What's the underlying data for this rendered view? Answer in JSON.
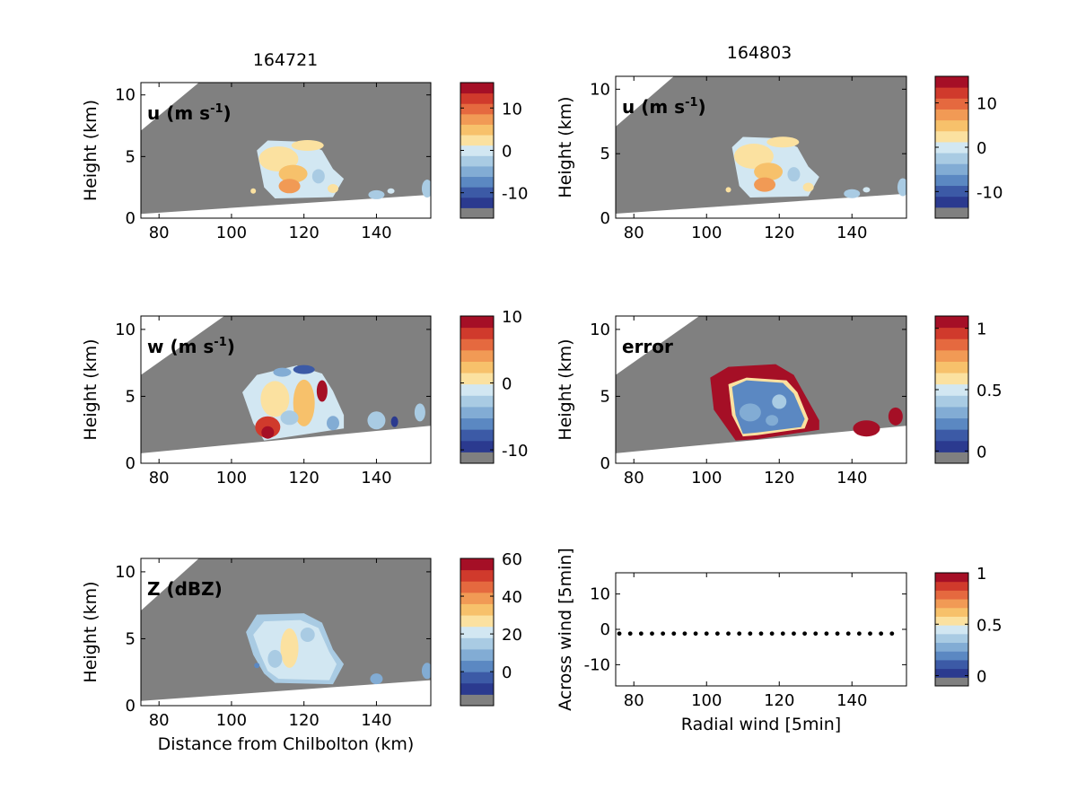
{
  "column_titles": [
    "164721",
    "164803"
  ],
  "colors": {
    "no_data": "#808080",
    "frame": "#000000",
    "scale": [
      "#2b3a8f",
      "#3c5aa6",
      "#5b88c2",
      "#82acd4",
      "#a9cbe3",
      "#d2e7f2",
      "#fbe1a0",
      "#f7c16b",
      "#f19a55",
      "#e5693f",
      "#d03a2c",
      "#a50f26"
    ],
    "points": "#000000"
  },
  "chart_data": [
    {
      "id": "u-164721",
      "type": "heatmap",
      "title": "164721",
      "label": "u (m s",
      "label_sup": "-1",
      "label_tail": ")",
      "xlabel": "",
      "ylabel": "Height (km)",
      "xlim": [
        75,
        155
      ],
      "ylim": [
        0,
        11
      ],
      "xticks": [
        80,
        100,
        120,
        140
      ],
      "yticks": [
        0,
        5,
        10
      ],
      "colorbar": {
        "range": [
          -16,
          16
        ],
        "ticks": [
          10,
          0,
          -10
        ]
      }
    },
    {
      "id": "u-164803",
      "type": "heatmap",
      "title": "164803",
      "label": "u (m s",
      "label_sup": "-1",
      "label_tail": ")",
      "xlabel": "",
      "ylabel": "Height (km)",
      "xlim": [
        75,
        155
      ],
      "ylim": [
        0,
        11
      ],
      "xticks": [
        80,
        100,
        120,
        140
      ],
      "yticks": [
        0,
        5,
        10
      ],
      "colorbar": {
        "range": [
          -16,
          16
        ],
        "ticks": [
          10,
          0,
          -10
        ]
      }
    },
    {
      "id": "w-164721",
      "type": "heatmap",
      "title": "",
      "label": "w (m s",
      "label_sup": "-1",
      "label_tail": ")",
      "xlabel": "",
      "ylabel": "Height (km)",
      "xlim": [
        75,
        155
      ],
      "ylim": [
        0,
        11
      ],
      "xticks": [
        80,
        100,
        120,
        140
      ],
      "yticks": [
        0,
        5,
        10
      ],
      "colorbar": {
        "range": [
          -12,
          10
        ],
        "ticks": [
          10,
          0,
          -10
        ]
      }
    },
    {
      "id": "error-164803",
      "type": "heatmap",
      "title": "",
      "label": "error",
      "label_sup": "",
      "label_tail": "",
      "xlabel": "",
      "ylabel": "Height (km)",
      "xlim": [
        75,
        155
      ],
      "ylim": [
        0,
        11
      ],
      "xticks": [
        80,
        100,
        120,
        140
      ],
      "yticks": [
        0,
        5,
        10
      ],
      "colorbar": {
        "range": [
          -0.1,
          1.1
        ],
        "ticks": [
          1,
          0.5,
          0
        ]
      }
    },
    {
      "id": "z-164721",
      "type": "heatmap",
      "title": "",
      "label": "Z (dBZ)",
      "label_sup": "",
      "label_tail": "",
      "xlabel": "Distance from Chilbolton (km)",
      "ylabel": "Height (km)",
      "xlim": [
        75,
        155
      ],
      "ylim": [
        0,
        11
      ],
      "xticks": [
        80,
        100,
        120,
        140
      ],
      "yticks": [
        0,
        5,
        10
      ],
      "colorbar": {
        "range": [
          -18,
          60
        ],
        "ticks": [
          60,
          40,
          20,
          0
        ]
      }
    },
    {
      "id": "wind-scatter",
      "type": "scatter",
      "title": "",
      "label": "",
      "label_sup": "",
      "label_tail": "",
      "xlabel": "Radial wind [5min]",
      "ylabel": "Across wind [5min]",
      "xlim": [
        75,
        155
      ],
      "ylim": [
        -16,
        16
      ],
      "xticks": [
        80,
        100,
        120,
        140
      ],
      "yticks": [
        10,
        0,
        -10
      ],
      "points": {
        "x": [
          76,
          79,
          82,
          85,
          88,
          91,
          94,
          97,
          100,
          103,
          106,
          109,
          112,
          115,
          118,
          121,
          124,
          127,
          130,
          133,
          136,
          139,
          142,
          145,
          148,
          151
        ],
        "y": [
          -1.2,
          -1.2,
          -1.2,
          -1.2,
          -1.2,
          -1.2,
          -1.2,
          -1.2,
          -1.2,
          -1.2,
          -1.2,
          -1.2,
          -1.2,
          -1.2,
          -1.2,
          -1.2,
          -1.2,
          -1.2,
          -1.2,
          -1.2,
          -1.2,
          -1.2,
          -1.2,
          -1.2,
          -1.2,
          -1.2
        ]
      },
      "colorbar": {
        "range": [
          -0.1,
          1.0
        ],
        "ticks": [
          1,
          0.5,
          0
        ]
      }
    }
  ]
}
